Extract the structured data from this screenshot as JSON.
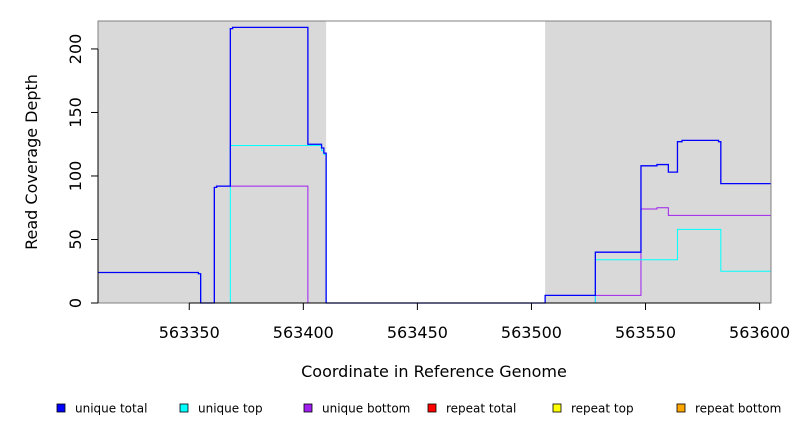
{
  "chart_data": {
    "type": "line",
    "xlabel": "Coordinate in Reference Genome",
    "ylabel": "Read Coverage Depth",
    "xlim": [
      563310,
      563605
    ],
    "ylim": [
      0,
      222
    ],
    "x_ticks": [
      563350,
      563400,
      563450,
      563500,
      563550,
      563600
    ],
    "y_ticks": [
      0,
      50,
      100,
      150,
      200
    ],
    "grid": false,
    "background_color": "#d9d9d9",
    "highlight_region": {
      "x_start": 563410,
      "x_end": 563506,
      "color": "#ffffff"
    },
    "legend_position": "bottom",
    "series": [
      {
        "name": "unique total",
        "color": "#0000ff",
        "points": [
          [
            563310,
            24
          ],
          [
            563354,
            24
          ],
          [
            563354,
            23
          ],
          [
            563355,
            23
          ],
          [
            563355,
            0
          ],
          [
            563361,
            0
          ],
          [
            563361,
            91
          ],
          [
            563362,
            91
          ],
          [
            563362,
            92
          ],
          [
            563368,
            92
          ],
          [
            563368,
            216
          ],
          [
            563369,
            216
          ],
          [
            563369,
            217
          ],
          [
            563402,
            217
          ],
          [
            563402,
            125
          ],
          [
            563408,
            125
          ],
          [
            563408,
            122
          ],
          [
            563409,
            122
          ],
          [
            563409,
            118
          ],
          [
            563410,
            118
          ],
          [
            563410,
            0
          ],
          [
            563506,
            0
          ],
          [
            563506,
            6
          ],
          [
            563528,
            6
          ],
          [
            563528,
            40
          ],
          [
            563548,
            40
          ],
          [
            563548,
            108
          ],
          [
            563555,
            108
          ],
          [
            563555,
            109
          ],
          [
            563560,
            109
          ],
          [
            563560,
            103
          ],
          [
            563564,
            103
          ],
          [
            563564,
            127
          ],
          [
            563566,
            127
          ],
          [
            563566,
            128
          ],
          [
            563582,
            128
          ],
          [
            563582,
            127
          ],
          [
            563583,
            127
          ],
          [
            563583,
            94
          ],
          [
            563605,
            94
          ]
        ]
      },
      {
        "name": "unique top",
        "color": "#00ffff",
        "points": [
          [
            563310,
            24
          ],
          [
            563354,
            24
          ],
          [
            563354,
            23
          ],
          [
            563355,
            23
          ],
          [
            563355,
            0
          ],
          [
            563368,
            0
          ],
          [
            563368,
            124
          ],
          [
            563408,
            124
          ],
          [
            563408,
            120
          ],
          [
            563409,
            120
          ],
          [
            563409,
            117
          ],
          [
            563410,
            117
          ],
          [
            563410,
            0
          ],
          [
            563528,
            0
          ],
          [
            563528,
            34
          ],
          [
            563564,
            34
          ],
          [
            563564,
            58
          ],
          [
            563583,
            58
          ],
          [
            563583,
            25
          ],
          [
            563605,
            25
          ]
        ]
      },
      {
        "name": "unique bottom",
        "color": "#a020f0",
        "points": [
          [
            563310,
            0
          ],
          [
            563361,
            0
          ],
          [
            563361,
            91
          ],
          [
            563362,
            91
          ],
          [
            563362,
            92
          ],
          [
            563402,
            92
          ],
          [
            563402,
            0
          ],
          [
            563528,
            0
          ],
          [
            563528,
            6
          ],
          [
            563548,
            6
          ],
          [
            563548,
            74
          ],
          [
            563555,
            74
          ],
          [
            563555,
            75
          ],
          [
            563560,
            75
          ],
          [
            563560,
            69
          ],
          [
            563605,
            69
          ]
        ]
      },
      {
        "name": "repeat total",
        "color": "#ff0000",
        "points": [
          [
            563310,
            0
          ],
          [
            563605,
            0
          ]
        ]
      },
      {
        "name": "repeat top",
        "color": "#ffff00",
        "points": [
          [
            563310,
            0
          ],
          [
            563605,
            0
          ]
        ]
      },
      {
        "name": "repeat bottom",
        "color": "#ffa500",
        "points": [
          [
            563310,
            0
          ],
          [
            563605,
            0
          ]
        ]
      }
    ]
  }
}
